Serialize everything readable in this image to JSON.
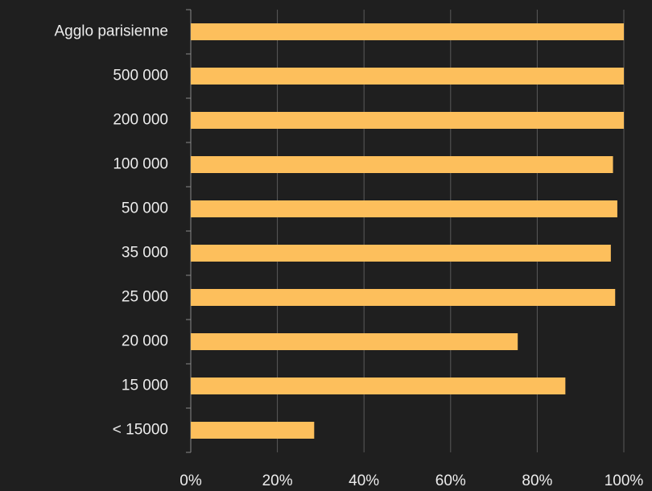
{
  "chart_data": {
    "type": "bar",
    "orientation": "horizontal",
    "categories": [
      "Agglo parisienne",
      "500 000",
      "200 000",
      "100 000",
      "50 000",
      "35 000",
      "25 000",
      "20 000",
      "15 000",
      "< 15000"
    ],
    "values": [
      100,
      100,
      100,
      97.5,
      98.5,
      97,
      98,
      75.5,
      86.5,
      28.5
    ],
    "color": "#fdbf5c",
    "xlim": [
      0,
      100
    ],
    "xticks": [
      {
        "value": 0,
        "label": "0%"
      },
      {
        "value": 20,
        "label": "20%"
      },
      {
        "value": 40,
        "label": "40%"
      },
      {
        "value": 60,
        "label": "60%"
      },
      {
        "value": 80,
        "label": "80%"
      },
      {
        "value": 100,
        "label": "100%"
      }
    ],
    "grid": true
  }
}
